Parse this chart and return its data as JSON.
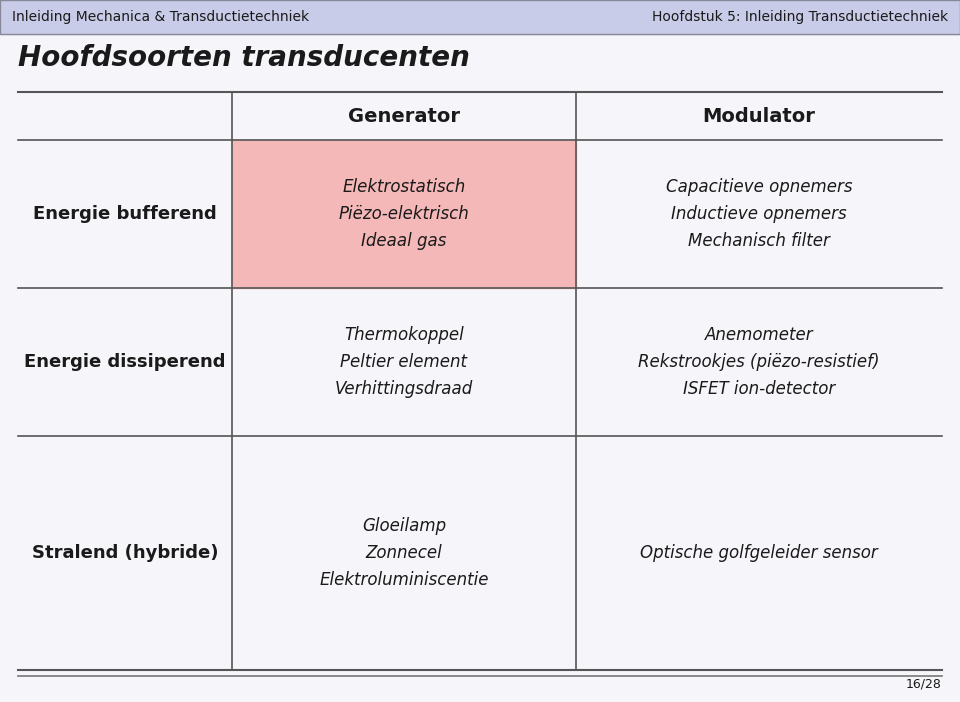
{
  "header_left": "Inleiding Mechanica & Transductietechniek",
  "header_right": "Hoofdstuk 5: Inleiding Transductietechniek",
  "title": "Hoofdsoorten transducenten",
  "col_headers": [
    "Generator",
    "Modulator"
  ],
  "row_labels": [
    "Energie bufferend",
    "Energie dissiperend",
    "Stralend (hybride)"
  ],
  "cells": [
    [
      "Elektrostatisch\nPiëzo-elektrisch\nIdeaal gas",
      "Capacitieve opnemers\nInductieve opnemers\nMechanisch filter"
    ],
    [
      "Thermokoppel\nPeltier element\nVerhittingsdraad",
      "Anemometer\nRekstrookjes (piëzo-resistief)\nISFET ion-detector"
    ],
    [
      "Gloeilamp\nZonnecel\nElektroluminiscentie",
      "Optische golfgeleider sensor"
    ]
  ],
  "highlight_color": "#f5b8b8",
  "background_color": "#f2f2f8",
  "header_bg": "#c8cce8",
  "header_border": "#888899",
  "line_color": "#555555",
  "text_color": "#1a1a1a",
  "header_fontsize": 10,
  "title_fontsize": 20,
  "col_header_fontsize": 14,
  "row_label_fontsize": 13,
  "cell_fontsize": 12,
  "footer_text": "16/28",
  "slide_bg": "#f5f5fa"
}
